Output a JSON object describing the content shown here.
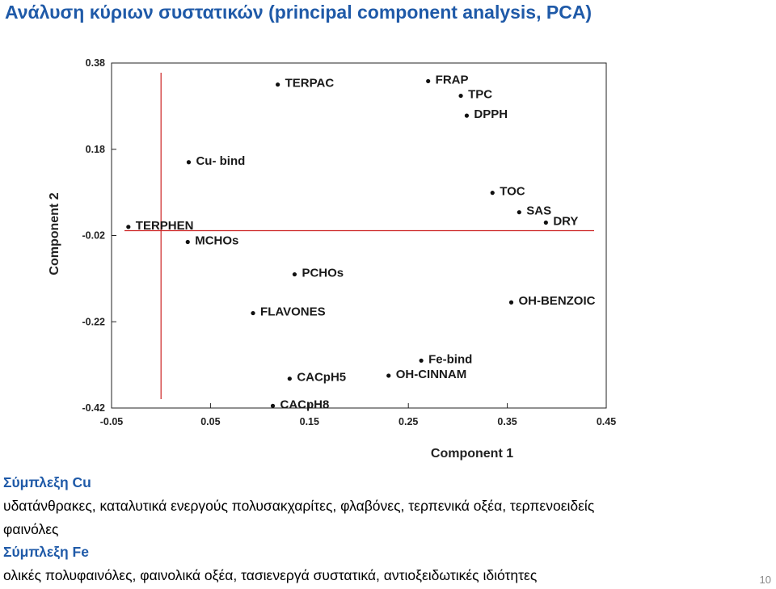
{
  "slide": {
    "title": "Ανάλυση κύριων συστατικών (principal component analysis, PCA)",
    "page_number": "10"
  },
  "text_blocks": {
    "cu_heading": "Σύμπλεξη Cu",
    "cu_line1": "υδατάνθρακες, καταλυτικά ενεργούς πολυσακχαρίτες, φλαβόνες, τερπενικά οξέα, τερπενοειδείς",
    "cu_line2": "φαινόλες",
    "fe_heading": "Σύμπλεξη Fe",
    "fe_line1": "ολικές πολυφαινόλες, φαινολικά οξέα, τασιενεργά συστατικά, αντιοξειδωτικές ιδιότητες"
  },
  "colors": {
    "title": "#1f5aa8",
    "heading": "#1f5aa8",
    "reference_lines": "#cc2222",
    "points": "#111111"
  },
  "chart_data": {
    "type": "scatter",
    "title": "",
    "xlabel": "Component 1",
    "ylabel": "Component 2",
    "xlim": [
      -0.05,
      0.45
    ],
    "ylim": [
      -0.42,
      0.38
    ],
    "x_ticks": [
      "-0.05",
      "0.05",
      "0.15",
      "0.25",
      "0.35",
      "0.45"
    ],
    "y_ticks": [
      "0.38",
      "0.18",
      "-0.02",
      "-0.22",
      "-0.42"
    ],
    "reference_lines": {
      "x": 0.0,
      "y": -0.0
    },
    "grid": false,
    "points": [
      {
        "label": "TERPAC",
        "x": 0.118,
        "y": 0.33
      },
      {
        "label": "FRAP",
        "x": 0.27,
        "y": 0.338
      },
      {
        "label": "TPC",
        "x": 0.303,
        "y": 0.304
      },
      {
        "label": "DPPH",
        "x": 0.309,
        "y": 0.258
      },
      {
        "label": "Cu- bind",
        "x": 0.028,
        "y": 0.15
      },
      {
        "label": "TOC",
        "x": 0.335,
        "y": 0.079
      },
      {
        "label": "SAS",
        "x": 0.362,
        "y": 0.034
      },
      {
        "label": "DRY",
        "x": 0.389,
        "y": 0.01
      },
      {
        "label": "TERPHEN",
        "x": -0.033,
        "y": 0.0
      },
      {
        "label": "MCHOs",
        "x": 0.027,
        "y": -0.035
      },
      {
        "label": "PCHOs",
        "x": 0.135,
        "y": -0.11
      },
      {
        "label": "OH-BENZOIC",
        "x": 0.354,
        "y": -0.175
      },
      {
        "label": "FLAVONES",
        "x": 0.093,
        "y": -0.2
      },
      {
        "label": "Fe-bind",
        "x": 0.263,
        "y": -0.31
      },
      {
        "label": "OH-CINNAM",
        "x": 0.23,
        "y": -0.345
      },
      {
        "label": "CACpH5",
        "x": 0.13,
        "y": -0.352
      },
      {
        "label": "CACpH8",
        "x": 0.113,
        "y": -0.415
      }
    ]
  }
}
